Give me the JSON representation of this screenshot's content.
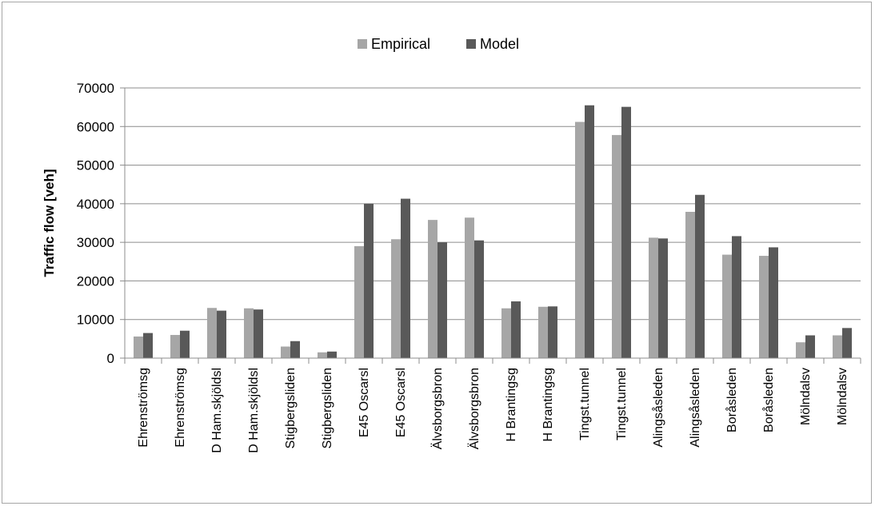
{
  "chart_data": {
    "type": "bar",
    "title": "",
    "xlabel": "",
    "ylabel": "Traffic flow [veh]",
    "ylim": [
      0,
      70000
    ],
    "yticks": [
      0,
      10000,
      20000,
      30000,
      40000,
      50000,
      60000,
      70000
    ],
    "grid": true,
    "legend_position": "top-center",
    "categories": [
      "Ehrenströmsg",
      "Ehrenströmsg",
      "D Ham.skjöldsl",
      "D Ham.skjöldsl",
      "Stigbergsliden",
      "Stigbergsliden",
      "E45 Oscarsl",
      "E45 Oscarsl",
      "Älvsborgsbron",
      "Älvsborgsbron",
      "H Brantingsg",
      "H Brantingsg",
      "Tingst.tunnel",
      "Tingst.tunnel",
      "Alingsåsleden",
      "Alingsåsleden",
      "Boråsleden",
      "Boråsleden",
      "Mölndalsv",
      "Mölndalsv"
    ],
    "series": [
      {
        "name": "Empirical",
        "color": "#a6a6a6",
        "values": [
          5600,
          6000,
          13000,
          12900,
          3000,
          1500,
          29000,
          30800,
          35800,
          36400,
          12900,
          13300,
          61200,
          57800,
          31200,
          37900,
          26800,
          26500,
          4100,
          5900
        ]
      },
      {
        "name": "Model",
        "color": "#595959",
        "values": [
          6500,
          7100,
          12300,
          12600,
          4400,
          1700,
          40000,
          41300,
          30000,
          30500,
          14700,
          13400,
          65500,
          65100,
          31000,
          42300,
          31600,
          28700,
          5900,
          7800
        ]
      }
    ]
  }
}
